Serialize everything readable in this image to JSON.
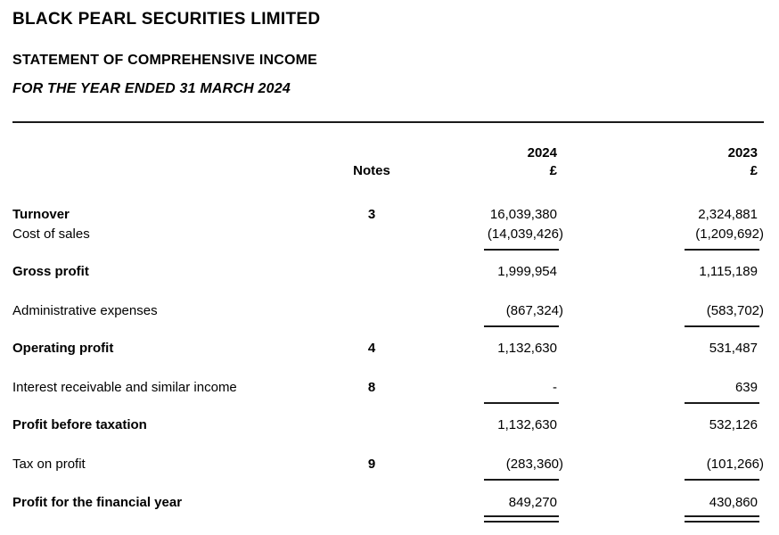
{
  "document": {
    "company_name": "BLACK PEARL SECURITIES LIMITED",
    "statement_title": "STATEMENT OF COMPREHENSIVE INCOME",
    "period": "FOR THE YEAR ENDED 31 MARCH 2024"
  },
  "table": {
    "headers": {
      "notes": "Notes",
      "year_current": "2024",
      "year_prior": "2023",
      "currency_current": "£",
      "currency_prior": "£"
    },
    "rows": [
      {
        "label": "Turnover",
        "note": "3",
        "current": "16,039,380",
        "prior": "2,324,881"
      },
      {
        "label": "Cost of sales",
        "note": "",
        "current": "(14,039,426)",
        "prior": "(1,209,692)"
      },
      {
        "label": "Gross profit",
        "note": "",
        "current": "1,999,954",
        "prior": "1,115,189"
      },
      {
        "label": "Administrative expenses",
        "note": "",
        "current": "(867,324)",
        "prior": "(583,702)"
      },
      {
        "label": "Operating profit",
        "note": "4",
        "current": "1,132,630",
        "prior": "531,487"
      },
      {
        "label": "Interest receivable and similar income",
        "note": "8",
        "current": "-",
        "prior": "639"
      },
      {
        "label": "Profit before taxation",
        "note": "",
        "current": "1,132,630",
        "prior": "532,126"
      },
      {
        "label": "Tax on profit",
        "note": "9",
        "current": "(283,360)",
        "prior": "(101,266)"
      },
      {
        "label": "Profit for the financial year",
        "note": "",
        "current": "849,270",
        "prior": "430,860"
      }
    ]
  }
}
